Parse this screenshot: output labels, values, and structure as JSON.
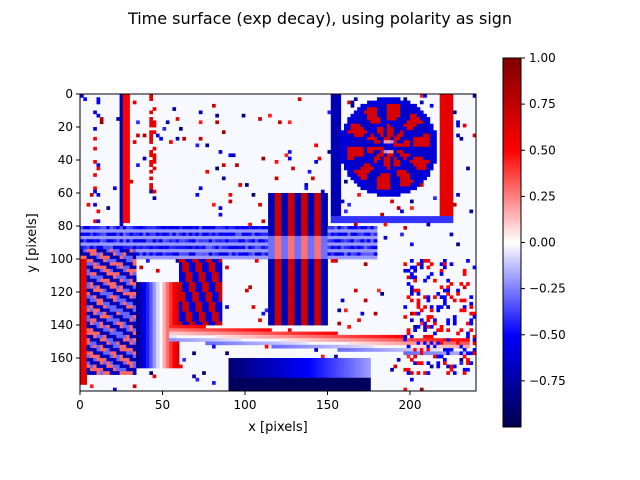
{
  "chart_data": {
    "type": "heatmap",
    "title": "Time surface (exp decay), using polarity as sign",
    "xlabel": "x [pixels]",
    "ylabel": "y [pixels]",
    "xlim": [
      0,
      240
    ],
    "ylim": [
      180,
      0
    ],
    "xticks": [
      "0",
      "50",
      "100",
      "150",
      "200"
    ],
    "yticks": [
      "0",
      "20",
      "40",
      "60",
      "80",
      "100",
      "120",
      "140",
      "160"
    ],
    "colormap": "seismic",
    "colorbar": {
      "vmin": -1.0,
      "vmax": 1.0,
      "ticks": [
        "1.00",
        "0.75",
        "0.50",
        "0.25",
        "0.00",
        "−0.25",
        "−0.50",
        "−0.75"
      ]
    },
    "colors": {
      "positive_max": "#800000",
      "positive": "#ff0000",
      "zero": "#ffffff",
      "negative": "#0000ff",
      "negative_max": "#00004c"
    },
    "image_description_regions": [
      {
        "shape": "vertical-edge",
        "x": 27,
        "y0": 0,
        "y1": 78,
        "value": -0.6
      },
      {
        "shape": "vertical-edge",
        "x": 45,
        "y0": 0,
        "y1": 60,
        "value": 0.6
      },
      {
        "shape": "dartboard",
        "cx": 187,
        "cy": 32,
        "r": 30
      },
      {
        "shape": "board-frame",
        "x0": 152,
        "y0": 0,
        "x1": 228,
        "y1": 78
      },
      {
        "shape": "shelf",
        "x0": 0,
        "y0": 80,
        "x1": 200,
        "y1": 100,
        "value": -0.5
      },
      {
        "shape": "bottle",
        "x0": 115,
        "y0": 60,
        "x1": 150,
        "y1": 140
      },
      {
        "shape": "cup",
        "x0": 35,
        "y0": 115,
        "x1": 60,
        "y1": 165
      },
      {
        "shape": "object",
        "x0": 60,
        "y0": 100,
        "x1": 85,
        "y1": 140
      },
      {
        "shape": "lamp-base",
        "x0": 90,
        "y0": 160,
        "x1": 175,
        "y1": 180
      },
      {
        "shape": "floor-edge",
        "x0": 55,
        "y0": 140,
        "x1": 235,
        "y1": 165
      }
    ]
  }
}
